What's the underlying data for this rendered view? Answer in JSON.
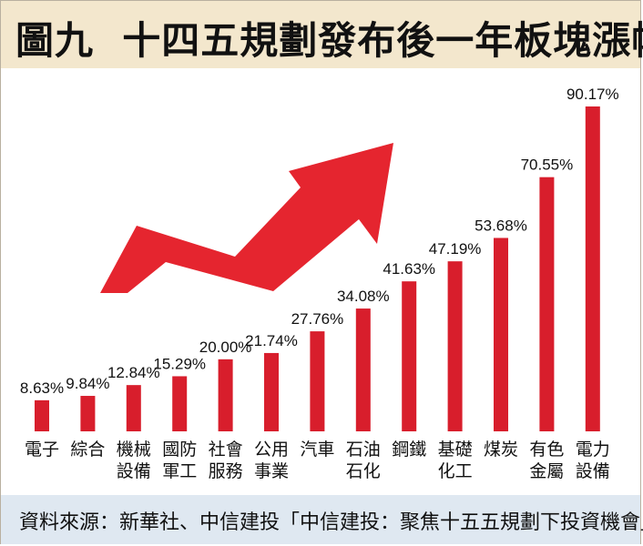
{
  "title": "圖九  十四五規劃發布後一年板塊漲幅",
  "source": "資料來源：新華社、中信建投「中信建投：聚焦十五五規劃下投資機會」",
  "colors": {
    "bar": "#d81e2c",
    "arrow": "#e5252f",
    "title_bg": "#f3e7cd",
    "source_bg": "#dfe8f1"
  },
  "chart_data": {
    "type": "bar",
    "title": "圖九  十四五規劃發布後一年板塊漲幅",
    "categories": [
      [
        "電子"
      ],
      [
        "綜合"
      ],
      [
        "機械",
        "設備"
      ],
      [
        "國防",
        "軍工"
      ],
      [
        "社會",
        "服務"
      ],
      [
        "公用",
        "事業"
      ],
      [
        "汽車"
      ],
      [
        "石油",
        "石化"
      ],
      [
        "鋼鐵"
      ],
      [
        "基礎",
        "化工"
      ],
      [
        "煤炭"
      ],
      [
        "有色",
        "金屬"
      ],
      [
        "電力",
        "設備"
      ]
    ],
    "values": [
      8.63,
      9.84,
      12.84,
      15.29,
      20.0,
      21.74,
      27.76,
      34.08,
      41.63,
      47.19,
      53.68,
      70.55,
      90.17
    ],
    "data_labels": [
      "8.63%",
      "9.84%",
      "12.84%",
      "15.29%",
      "20.00%",
      "21.74%",
      "27.76%",
      "34.08%",
      "41.63%",
      "47.19%",
      "53.68%",
      "70.55%",
      "90.17%"
    ],
    "ylim": [
      0,
      100
    ],
    "grid": false,
    "legend": "none"
  }
}
